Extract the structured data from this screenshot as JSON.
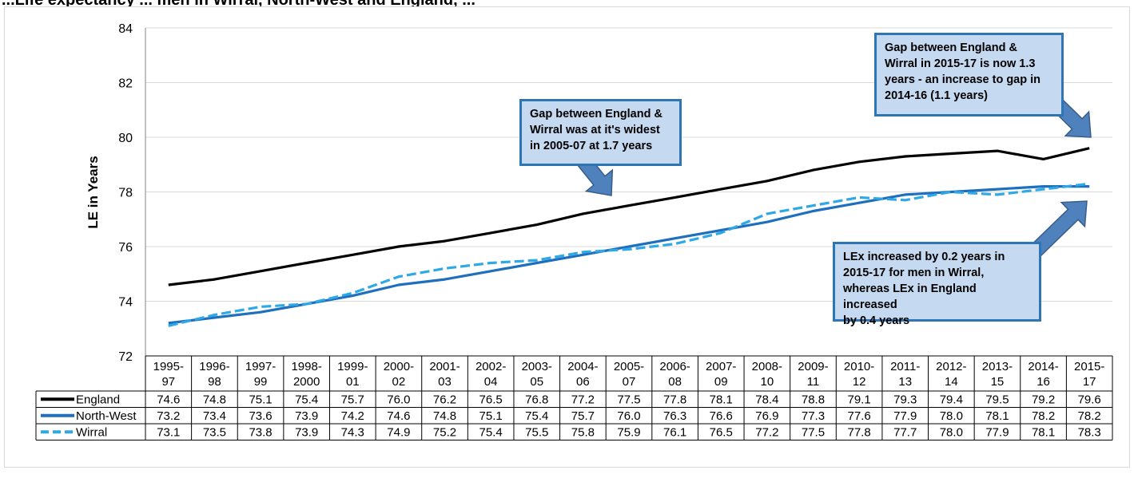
{
  "figure_title": "...Life expectancy ... men in Wirral, North-West and England, ...",
  "chart_data": {
    "type": "line",
    "ylabel": "LE in Years",
    "ylim": [
      72,
      84
    ],
    "yticks": [
      72,
      74,
      76,
      78,
      80,
      82,
      84
    ],
    "grid": true,
    "categories": [
      "1995-97",
      "1996-98",
      "1997-99",
      "1998-2000",
      "1999-01",
      "2000-02",
      "2001-03",
      "2002-04",
      "2003-05",
      "2004-06",
      "2005-07",
      "2006-08",
      "2007-09",
      "2008-10",
      "2009-11",
      "2010-12",
      "2011-13",
      "2012-14",
      "2013-15",
      "2014-16",
      "2015-17"
    ],
    "category_labels": [
      [
        "1995-",
        "97"
      ],
      [
        "1996-",
        "98"
      ],
      [
        "1997-",
        "99"
      ],
      [
        "1998-",
        "2000"
      ],
      [
        "1999-",
        "01"
      ],
      [
        "2000-",
        "02"
      ],
      [
        "2001-",
        "03"
      ],
      [
        "2002-",
        "04"
      ],
      [
        "2003-",
        "05"
      ],
      [
        "2004-",
        "06"
      ],
      [
        "2005-",
        "07"
      ],
      [
        "2006-",
        "08"
      ],
      [
        "2007-",
        "09"
      ],
      [
        "2008-",
        "10"
      ],
      [
        "2009-",
        "11"
      ],
      [
        "2010-",
        "12"
      ],
      [
        "2011-",
        "13"
      ],
      [
        "2012-",
        "14"
      ],
      [
        "2013-",
        "15"
      ],
      [
        "2014-",
        "16"
      ],
      [
        "2015-",
        "17"
      ]
    ],
    "series": [
      {
        "name": "England",
        "color": "#000000",
        "dash": "solid",
        "values": [
          74.6,
          74.8,
          75.1,
          75.4,
          75.7,
          76.0,
          76.2,
          76.5,
          76.8,
          77.2,
          77.5,
          77.8,
          78.1,
          78.4,
          78.8,
          79.1,
          79.3,
          79.4,
          79.5,
          79.2,
          79.6
        ],
        "labels": [
          "74.6",
          "74.8",
          "75.1",
          "75.4",
          "75.7",
          "76.0",
          "76.2",
          "76.5",
          "76.8",
          "77.2",
          "77.5",
          "77.8",
          "78.1",
          "78.4",
          "78.8",
          "79.1",
          "79.3",
          "79.4",
          "79.5",
          "79.2",
          "79.6"
        ]
      },
      {
        "name": "North-West",
        "color": "#1f6fbf",
        "dash": "solid",
        "values": [
          73.2,
          73.4,
          73.6,
          73.9,
          74.2,
          74.6,
          74.8,
          75.1,
          75.4,
          75.7,
          76.0,
          76.3,
          76.6,
          76.9,
          77.3,
          77.6,
          77.9,
          78.0,
          78.1,
          78.2,
          78.2
        ],
        "labels": [
          "73.2",
          "73.4",
          "73.6",
          "73.9",
          "74.2",
          "74.6",
          "74.8",
          "75.1",
          "75.4",
          "75.7",
          "76.0",
          "76.3",
          "76.6",
          "76.9",
          "77.3",
          "77.6",
          "77.9",
          "78.0",
          "78.1",
          "78.2",
          "78.2"
        ]
      },
      {
        "name": "Wirral",
        "color": "#2ea8e6",
        "dash": "dashed",
        "values": [
          73.1,
          73.5,
          73.8,
          73.9,
          74.3,
          74.9,
          75.2,
          75.4,
          75.5,
          75.8,
          75.9,
          76.1,
          76.5,
          77.2,
          77.5,
          77.8,
          77.7,
          78.0,
          77.9,
          78.1,
          78.3
        ],
        "labels": [
          "73.1",
          "73.5",
          "73.8",
          "73.9",
          "74.3",
          "74.9",
          "75.2",
          "75.4",
          "75.5",
          "75.8",
          "75.9",
          "76.1",
          "76.5",
          "77.2",
          "77.5",
          "77.8",
          "77.7",
          "78.0",
          "77.9",
          "78.1",
          "78.3"
        ]
      }
    ],
    "annotations": [
      {
        "lines": [
          "Gap between England &",
          "Wirral was at it's widest",
          "in 2005-07 at 1.7 years"
        ]
      },
      {
        "lines": [
          "Gap between England &",
          "Wirral in 2015-17 is now 1.3",
          "years - an increase to gap in",
          "2014-16 (1.1 years)"
        ]
      },
      {
        "lines": [
          "LEx increased by 0.2 years in",
          "2015-17 for men in Wirral,",
          "whereas LEx in England increased",
          "by 0.4 years"
        ]
      }
    ]
  }
}
